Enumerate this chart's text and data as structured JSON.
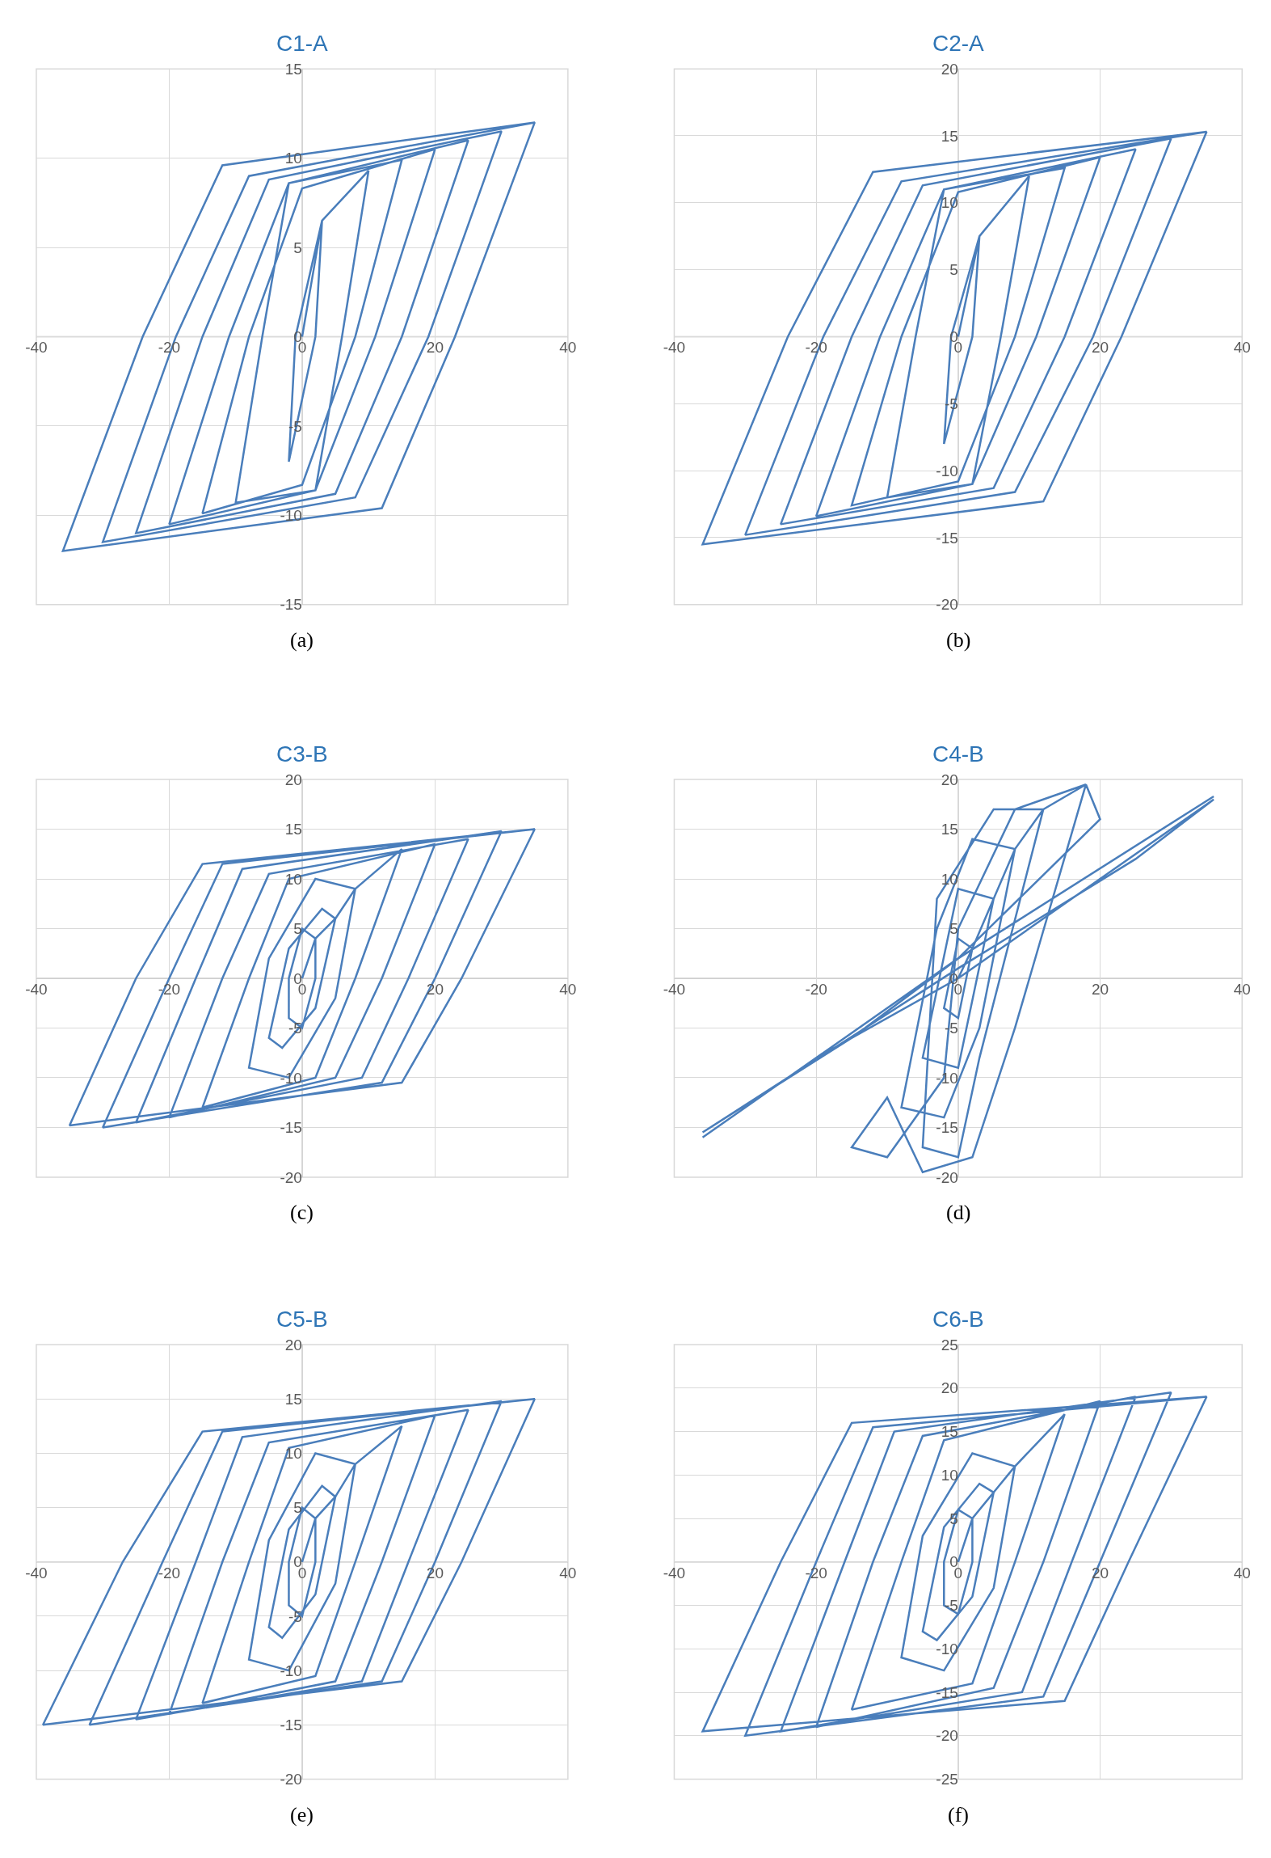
{
  "chart_data": [
    {
      "type": "line",
      "title": "C1-A",
      "annotations": [
        "(a)"
      ],
      "color": "#4a7ebb",
      "xlim": [
        -40,
        40
      ],
      "xticks": [
        -40,
        -20,
        0,
        20,
        40
      ],
      "ylim": [
        -15,
        15
      ],
      "yticks": [
        -15,
        -10,
        -5,
        0,
        5,
        10,
        15
      ],
      "grid": true,
      "x": [
        0,
        3,
        2,
        -2,
        -1,
        3,
        10,
        6,
        2,
        -10,
        -6,
        -2,
        15,
        8,
        0,
        -15,
        -8,
        0,
        20,
        11,
        2,
        -20,
        -11,
        -2,
        25,
        15,
        5,
        -25,
        -15,
        -5,
        30,
        19,
        8,
        -30,
        -19,
        -8,
        35,
        23,
        12,
        -36,
        -24,
        -12,
        35
      ],
      "values": [
        0,
        6.5,
        0,
        -7,
        0,
        6.5,
        9.3,
        0,
        -8.6,
        -9.3,
        0,
        8.6,
        9.9,
        0,
        -8.3,
        -9.9,
        0,
        8.3,
        10.5,
        0,
        -8.6,
        -10.5,
        0,
        8.6,
        11,
        0,
        -8.8,
        -11,
        0,
        8.8,
        11.5,
        0,
        -9,
        -11.5,
        0,
        9,
        12,
        0,
        -9.6,
        -12,
        0,
        9.6,
        12
      ]
    },
    {
      "type": "line",
      "title": "C2-A",
      "annotations": [
        "(b)"
      ],
      "color": "#4a7ebb",
      "xlim": [
        -40,
        40
      ],
      "xticks": [
        -40,
        -20,
        0,
        20,
        40
      ],
      "ylim": [
        -20,
        20
      ],
      "yticks": [
        -20,
        -15,
        -10,
        -5,
        0,
        5,
        10,
        15,
        20
      ],
      "grid": true,
      "x": [
        0,
        3,
        2,
        -2,
        -1,
        3,
        10,
        6,
        2,
        -10,
        -6,
        -2,
        15,
        8,
        0,
        -15,
        -8,
        0,
        20,
        11,
        2,
        -20,
        -11,
        -2,
        25,
        15,
        5,
        -25,
        -15,
        -5,
        30,
        19,
        8,
        -30,
        -19,
        -8,
        35,
        23,
        12,
        -36,
        -24,
        -12,
        35
      ],
      "values": [
        0,
        7.5,
        0,
        -8,
        0,
        7.5,
        12,
        0,
        -11,
        -12,
        0,
        11,
        12.6,
        0,
        -10.8,
        -12.6,
        0,
        10.8,
        13.4,
        0,
        -11,
        -13.4,
        0,
        11,
        14,
        0,
        -11.3,
        -14,
        0,
        11.3,
        14.8,
        0,
        -11.6,
        -14.8,
        0,
        11.6,
        15.3,
        0,
        -12.3,
        -15.5,
        0,
        12.3,
        15.3
      ]
    },
    {
      "type": "line",
      "title": "C3-B",
      "annotations": [
        "(c)"
      ],
      "color": "#4a7ebb",
      "xlim": [
        -40,
        40
      ],
      "xticks": [
        -40,
        -20,
        0,
        20,
        40
      ],
      "ylim": [
        -20,
        20
      ],
      "yticks": [
        -20,
        -15,
        -10,
        -5,
        0,
        5,
        10,
        15,
        20
      ],
      "grid": true,
      "x": [
        0,
        2,
        0,
        -2,
        -2,
        0,
        2,
        2,
        5,
        3,
        -2,
        -5,
        -3,
        2,
        5,
        8,
        2,
        -5,
        -8,
        -2,
        5,
        8,
        15,
        8,
        2,
        -15,
        -8,
        -2,
        20,
        12,
        5,
        -20,
        -12,
        -5,
        25,
        16,
        9,
        -25,
        -16,
        -9,
        30,
        20,
        12,
        -30,
        -20,
        -12,
        35,
        24,
        15,
        -35,
        -25,
        -15,
        35
      ],
      "values": [
        0,
        4,
        5,
        0,
        -4,
        -5,
        0,
        4,
        6,
        7,
        3,
        -6,
        -7,
        -3,
        6,
        9,
        10,
        2,
        -9,
        -10,
        -2,
        9,
        13,
        0,
        -10,
        -13,
        0,
        10,
        13.5,
        0,
        -10,
        -14,
        0,
        10.5,
        14,
        0,
        -10,
        -14.5,
        0,
        11,
        14.8,
        0,
        -10.5,
        -15,
        0,
        11.5,
        15,
        0,
        -10.5,
        -14.8,
        0,
        11.5,
        15
      ]
    },
    {
      "type": "line",
      "title": "C4-B",
      "annotations": [
        "(d)"
      ],
      "color": "#4a7ebb",
      "xlim": [
        -40,
        40
      ],
      "xticks": [
        -40,
        -20,
        0,
        20,
        40
      ],
      "ylim": [
        -20,
        20
      ],
      "yticks": [
        -20,
        -15,
        -10,
        -5,
        0,
        5,
        10,
        15,
        20
      ],
      "grid": true,
      "x": [
        0,
        2,
        0,
        -2,
        0,
        2,
        5,
        0,
        -5,
        0,
        5,
        8,
        2,
        -3,
        -8,
        -2,
        3,
        8,
        12,
        5,
        -3,
        -5,
        0,
        3,
        12,
        18,
        8,
        0,
        -2,
        -10,
        -15,
        -10,
        -5,
        2,
        8,
        18,
        20,
        0,
        -36,
        -20,
        0,
        36,
        25,
        0,
        -36,
        -15,
        0,
        36
      ],
      "values": [
        0,
        3,
        4,
        -3,
        -4,
        3,
        8,
        9,
        -8,
        -9,
        8,
        13,
        14,
        5,
        -13,
        -14,
        -5,
        13,
        17,
        17,
        8,
        -17,
        -18,
        -8,
        17,
        19.5,
        17,
        5,
        -10,
        -18,
        -17,
        -12,
        -19.5,
        -18,
        -5,
        19.5,
        16,
        2,
        -16,
        -8,
        0,
        18,
        12,
        1,
        -15.5,
        -6,
        2,
        18.3
      ]
    },
    {
      "type": "line",
      "title": "C5-B",
      "annotations": [
        "(e)"
      ],
      "color": "#4a7ebb",
      "xlim": [
        -40,
        40
      ],
      "xticks": [
        -40,
        -20,
        0,
        20,
        40
      ],
      "ylim": [
        -20,
        20
      ],
      "yticks": [
        -20,
        -15,
        -10,
        -5,
        0,
        5,
        10,
        15,
        20
      ],
      "grid": true,
      "x": [
        0,
        2,
        0,
        -2,
        -2,
        0,
        2,
        2,
        5,
        3,
        -2,
        -5,
        -3,
        2,
        5,
        8,
        2,
        -5,
        -8,
        -2,
        5,
        8,
        15,
        8,
        2,
        -15,
        -8,
        -2,
        20,
        12,
        5,
        -20,
        -12,
        -5,
        25,
        16,
        9,
        -25,
        -16,
        -9,
        30,
        20,
        12,
        -32,
        -21,
        -12,
        35,
        24,
        15,
        -39,
        -27,
        -15,
        35
      ],
      "values": [
        0,
        4,
        5,
        0,
        -4,
        -5,
        0,
        4,
        6,
        7,
        3,
        -6,
        -7,
        -3,
        6,
        9,
        10,
        2,
        -9,
        -10,
        -2,
        9,
        12.5,
        0,
        -10.5,
        -13,
        0,
        10.5,
        13.5,
        0,
        -11,
        -14,
        0,
        11,
        14,
        0,
        -11,
        -14.5,
        0,
        11.5,
        14.8,
        0,
        -11,
        -15,
        0,
        12,
        15,
        0,
        -11,
        -15,
        0,
        12,
        15
      ]
    },
    {
      "type": "line",
      "title": "C6-B",
      "annotations": [
        "(f)"
      ],
      "color": "#4a7ebb",
      "xlim": [
        -40,
        40
      ],
      "xticks": [
        -40,
        -20,
        0,
        20,
        40
      ],
      "ylim": [
        -25,
        25
      ],
      "yticks": [
        -25,
        -20,
        -15,
        -10,
        -5,
        0,
        5,
        10,
        15,
        20,
        25
      ],
      "grid": true,
      "x": [
        0,
        2,
        0,
        -2,
        -2,
        0,
        2,
        2,
        5,
        3,
        -2,
        -5,
        -3,
        2,
        5,
        8,
        2,
        -5,
        -8,
        -2,
        5,
        8,
        15,
        8,
        2,
        -15,
        -8,
        -2,
        20,
        12,
        5,
        -20,
        -12,
        -5,
        25,
        16,
        9,
        -25,
        -16,
        -9,
        30,
        20,
        12,
        -30,
        -20,
        -12,
        35,
        24,
        15,
        -36,
        -25,
        -15,
        35
      ],
      "values": [
        0,
        5,
        6,
        0,
        -5,
        -6,
        0,
        5,
        8,
        9,
        4,
        -8,
        -9,
        -4,
        8,
        11,
        12.5,
        3,
        -11,
        -12.5,
        -3,
        11,
        17,
        0,
        -14,
        -17,
        0,
        14,
        18.5,
        0,
        -14.5,
        -19,
        0,
        14.5,
        19,
        0,
        -15,
        -19.5,
        0,
        15,
        19.5,
        0,
        -15.5,
        -20,
        0,
        15.5,
        19,
        0,
        -16,
        -19.5,
        0,
        16,
        19
      ]
    }
  ]
}
